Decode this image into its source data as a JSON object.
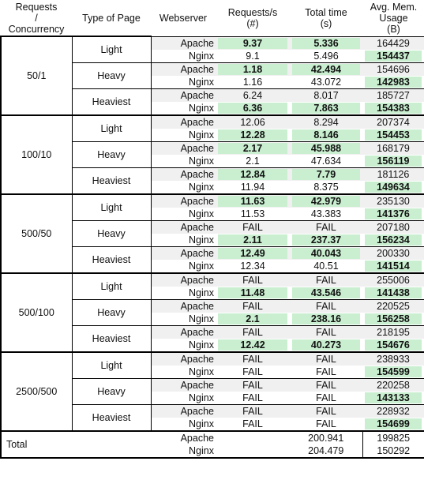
{
  "headers": {
    "concurrency": [
      "Requests",
      "/",
      "Concurrency"
    ],
    "page_type": "Type of Page",
    "webserver": "Webserver",
    "requests": [
      "Requests/s",
      "(#)"
    ],
    "total_time": [
      "Total time",
      "(s)"
    ],
    "memory": [
      "Avg. Mem.",
      "Usage",
      "(B)"
    ]
  },
  "groups": [
    {
      "concurrency": "50/1",
      "pages": [
        {
          "type": "Light",
          "rows": [
            {
              "server": "Apache",
              "req": "9.37",
              "time": "5.336",
              "mem": "164429",
              "hl": {
                "req": true,
                "time": true,
                "mem": false
              }
            },
            {
              "server": "Nginx",
              "req": "9.1",
              "time": "5.496",
              "mem": "154437",
              "hl": {
                "req": false,
                "time": false,
                "mem": true
              }
            }
          ]
        },
        {
          "type": "Heavy",
          "rows": [
            {
              "server": "Apache",
              "req": "1.18",
              "time": "42.494",
              "mem": "154696",
              "hl": {
                "req": true,
                "time": true,
                "mem": false
              }
            },
            {
              "server": "Nginx",
              "req": "1.16",
              "time": "43.072",
              "mem": "142983",
              "hl": {
                "req": false,
                "time": false,
                "mem": true
              }
            }
          ]
        },
        {
          "type": "Heaviest",
          "rows": [
            {
              "server": "Apache",
              "req": "6.24",
              "time": "8.017",
              "mem": "185727",
              "hl": {
                "req": false,
                "time": false,
                "mem": false
              }
            },
            {
              "server": "Nginx",
              "req": "6.36",
              "time": "7.863",
              "mem": "154383",
              "hl": {
                "req": true,
                "time": true,
                "mem": true
              }
            }
          ]
        }
      ]
    },
    {
      "concurrency": "100/10",
      "pages": [
        {
          "type": "Light",
          "rows": [
            {
              "server": "Apache",
              "req": "12.06",
              "time": "8.294",
              "mem": "207374",
              "hl": {
                "req": false,
                "time": false,
                "mem": false
              }
            },
            {
              "server": "Nginx",
              "req": "12.28",
              "time": "8.146",
              "mem": "154453",
              "hl": {
                "req": true,
                "time": true,
                "mem": true
              }
            }
          ]
        },
        {
          "type": "Heavy",
          "rows": [
            {
              "server": "Apache",
              "req": "2.17",
              "time": "45.988",
              "mem": "168179",
              "hl": {
                "req": true,
                "time": true,
                "mem": false
              }
            },
            {
              "server": "Nginx",
              "req": "2.1",
              "time": "47.634",
              "mem": "156119",
              "hl": {
                "req": false,
                "time": false,
                "mem": true
              }
            }
          ]
        },
        {
          "type": "Heaviest",
          "rows": [
            {
              "server": "Apache",
              "req": "12.84",
              "time": "7.79",
              "mem": "181126",
              "hl": {
                "req": true,
                "time": true,
                "mem": false
              }
            },
            {
              "server": "Nginx",
              "req": "11.94",
              "time": "8.375",
              "mem": "149634",
              "hl": {
                "req": false,
                "time": false,
                "mem": true
              }
            }
          ]
        }
      ]
    },
    {
      "concurrency": "500/50",
      "pages": [
        {
          "type": "Light",
          "rows": [
            {
              "server": "Apache",
              "req": "11.63",
              "time": "42.979",
              "mem": "235130",
              "hl": {
                "req": true,
                "time": true,
                "mem": false
              }
            },
            {
              "server": "Nginx",
              "req": "11.53",
              "time": "43.383",
              "mem": "141376",
              "hl": {
                "req": false,
                "time": false,
                "mem": true
              }
            }
          ]
        },
        {
          "type": "Heavy",
          "rows": [
            {
              "server": "Apache",
              "req": "FAIL",
              "time": "FAIL",
              "mem": "207180",
              "hl": {
                "req": false,
                "time": false,
                "mem": false
              }
            },
            {
              "server": "Nginx",
              "req": "2.11",
              "time": "237.37",
              "mem": "156234",
              "hl": {
                "req": true,
                "time": true,
                "mem": true
              }
            }
          ]
        },
        {
          "type": "Heaviest",
          "rows": [
            {
              "server": "Apache",
              "req": "12.49",
              "time": "40.043",
              "mem": "200330",
              "hl": {
                "req": true,
                "time": true,
                "mem": false
              }
            },
            {
              "server": "Nginx",
              "req": "12.34",
              "time": "40.51",
              "mem": "141514",
              "hl": {
                "req": false,
                "time": false,
                "mem": true
              }
            }
          ]
        }
      ]
    },
    {
      "concurrency": "500/100",
      "pages": [
        {
          "type": "Light",
          "rows": [
            {
              "server": "Apache",
              "req": "FAIL",
              "time": "FAIL",
              "mem": "255006",
              "hl": {
                "req": false,
                "time": false,
                "mem": false
              }
            },
            {
              "server": "Nginx",
              "req": "11.48",
              "time": "43.546",
              "mem": "141438",
              "hl": {
                "req": true,
                "time": true,
                "mem": true
              }
            }
          ]
        },
        {
          "type": "Heavy",
          "rows": [
            {
              "server": "Apache",
              "req": "FAIL",
              "time": "FAIL",
              "mem": "220525",
              "hl": {
                "req": false,
                "time": false,
                "mem": false
              }
            },
            {
              "server": "Nginx",
              "req": "2.1",
              "time": "238.16",
              "mem": "156258",
              "hl": {
                "req": true,
                "time": true,
                "mem": true
              }
            }
          ]
        },
        {
          "type": "Heaviest",
          "rows": [
            {
              "server": "Apache",
              "req": "FAIL",
              "time": "FAIL",
              "mem": "218195",
              "hl": {
                "req": false,
                "time": false,
                "mem": false
              }
            },
            {
              "server": "Nginx",
              "req": "12.42",
              "time": "40.273",
              "mem": "154676",
              "hl": {
                "req": true,
                "time": true,
                "mem": true
              }
            }
          ]
        }
      ]
    },
    {
      "concurrency": "2500/500",
      "pages": [
        {
          "type": "Light",
          "rows": [
            {
              "server": "Apache",
              "req": "FAIL",
              "time": "FAIL",
              "mem": "238933",
              "hl": {
                "req": false,
                "time": false,
                "mem": false
              }
            },
            {
              "server": "Nginx",
              "req": "FAIL",
              "time": "FAIL",
              "mem": "154599",
              "hl": {
                "req": false,
                "time": false,
                "mem": true
              }
            }
          ]
        },
        {
          "type": "Heavy",
          "rows": [
            {
              "server": "Apache",
              "req": "FAIL",
              "time": "FAIL",
              "mem": "220258",
              "hl": {
                "req": false,
                "time": false,
                "mem": false
              }
            },
            {
              "server": "Nginx",
              "req": "FAIL",
              "time": "FAIL",
              "mem": "143133",
              "hl": {
                "req": false,
                "time": false,
                "mem": true
              }
            }
          ]
        },
        {
          "type": "Heaviest",
          "rows": [
            {
              "server": "Apache",
              "req": "FAIL",
              "time": "FAIL",
              "mem": "228932",
              "hl": {
                "req": false,
                "time": false,
                "mem": false
              }
            },
            {
              "server": "Nginx",
              "req": "FAIL",
              "time": "FAIL",
              "mem": "154699",
              "hl": {
                "req": false,
                "time": false,
                "mem": true
              }
            }
          ]
        }
      ]
    }
  ],
  "total": {
    "label": "Total",
    "rows": [
      {
        "server": "Apache",
        "time": "200.941",
        "mem": "199825"
      },
      {
        "server": "Nginx",
        "time": "204.479",
        "mem": "150292"
      }
    ]
  },
  "colors": {
    "highlight": "#c9efd0",
    "shade": "#f0f0f0"
  }
}
